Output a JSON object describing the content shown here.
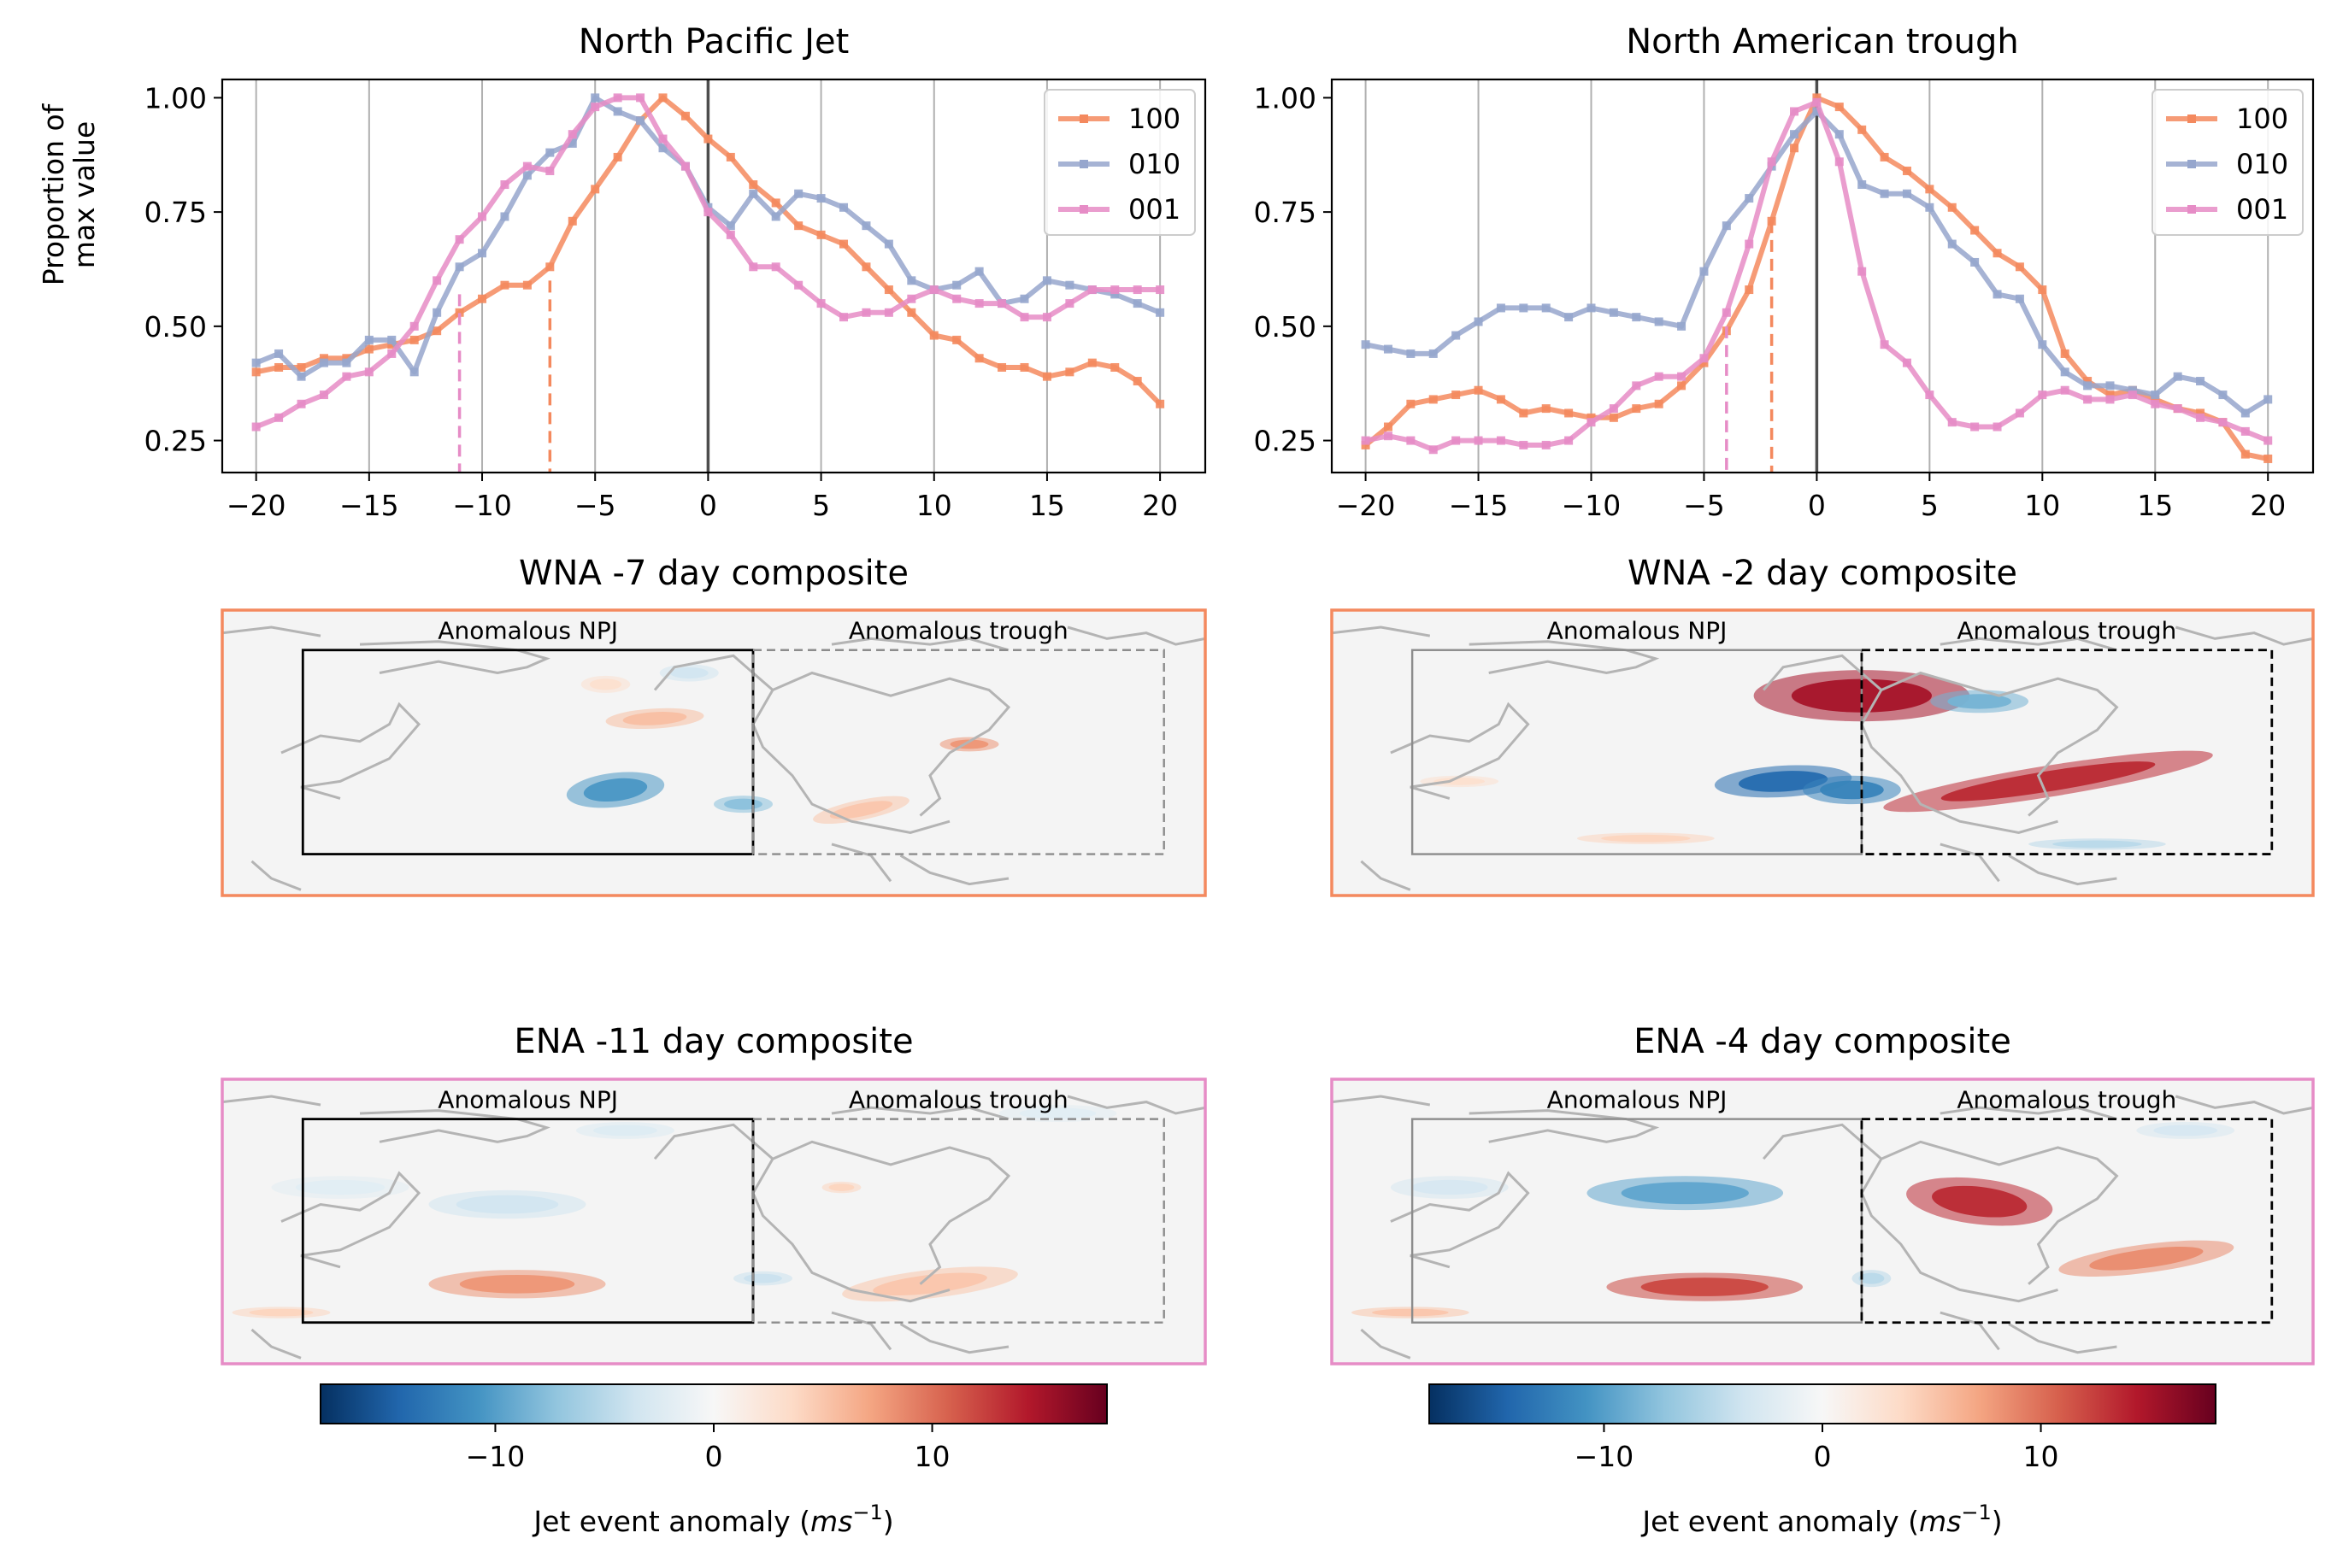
{
  "colors": {
    "c100": "#f4895e",
    "c010": "#96a6cd",
    "c001": "#e68cc6",
    "grid": "#b0b0b0",
    "zero_line": "#4d4d4d",
    "map_bg": "#f4f4f4",
    "coast": "#b4b4b4",
    "box_active": "#000000",
    "box_inactive": "#8c8c8c",
    "colormap": [
      "#053061",
      "#2166ac",
      "#4393c3",
      "#92c5de",
      "#d1e5f0",
      "#f7f7f7",
      "#fddbc7",
      "#f4a582",
      "#d6604d",
      "#b2182b",
      "#67001f"
    ]
  },
  "chart_data": [
    {
      "type": "line",
      "title": "North Pacific Jet",
      "ylabel": "Proportion of\nmax value",
      "xlabel": "",
      "xlim": [
        -21.5,
        22
      ],
      "ylim": [
        0.18,
        1.04
      ],
      "x": [
        -20,
        -19,
        -18,
        -17,
        -16,
        -15,
        -14,
        -13,
        -12,
        -11,
        -10,
        -9,
        -8,
        -7,
        -6,
        -5,
        -4,
        -3,
        -2,
        -1,
        0,
        1,
        2,
        3,
        4,
        5,
        6,
        7,
        8,
        9,
        10,
        11,
        12,
        13,
        14,
        15,
        16,
        17,
        18,
        19,
        20
      ],
      "x_ticks": [
        -20,
        -15,
        -10,
        -5,
        0,
        5,
        10,
        15,
        20
      ],
      "x_tick_labels": [
        "−20",
        "−15",
        "−10",
        "−5",
        "0",
        "5",
        "10",
        "15",
        "20"
      ],
      "y_ticks": [
        0.25,
        0.5,
        0.75,
        1.0
      ],
      "y_tick_labels": [
        "0.25",
        "0.50",
        "0.75",
        "1.00"
      ],
      "grid_x": true,
      "zero_line": true,
      "legend": "top-right",
      "series": [
        {
          "name": "100",
          "color_key": "c100",
          "values": [
            0.4,
            0.41,
            0.41,
            0.43,
            0.43,
            0.45,
            0.46,
            0.47,
            0.49,
            0.53,
            0.56,
            0.59,
            0.59,
            0.63,
            0.73,
            0.8,
            0.87,
            0.95,
            1.0,
            0.96,
            0.91,
            0.87,
            0.81,
            0.77,
            0.72,
            0.7,
            0.68,
            0.63,
            0.58,
            0.53,
            0.48,
            0.47,
            0.43,
            0.41,
            0.41,
            0.39,
            0.4,
            0.42,
            0.41,
            0.38,
            0.33
          ]
        },
        {
          "name": "010",
          "color_key": "c010",
          "values": [
            0.42,
            0.44,
            0.39,
            0.42,
            0.42,
            0.47,
            0.47,
            0.4,
            0.53,
            0.63,
            0.66,
            0.74,
            0.83,
            0.88,
            0.9,
            1.0,
            0.97,
            0.95,
            0.89,
            0.85,
            0.76,
            0.72,
            0.79,
            0.74,
            0.79,
            0.78,
            0.76,
            0.72,
            0.68,
            0.6,
            0.58,
            0.59,
            0.62,
            0.55,
            0.56,
            0.6,
            0.59,
            0.58,
            0.57,
            0.55,
            0.53
          ]
        },
        {
          "name": "001",
          "color_key": "c001",
          "values": [
            0.28,
            0.3,
            0.33,
            0.35,
            0.39,
            0.4,
            0.44,
            0.5,
            0.6,
            0.69,
            0.74,
            0.81,
            0.85,
            0.84,
            0.92,
            0.98,
            1.0,
            1.0,
            0.91,
            0.85,
            0.75,
            0.7,
            0.63,
            0.63,
            0.59,
            0.55,
            0.52,
            0.53,
            0.53,
            0.56,
            0.58,
            0.56,
            0.55,
            0.55,
            0.52,
            0.52,
            0.55,
            0.58,
            0.58,
            0.58,
            0.58
          ]
        }
      ],
      "event_lines": [
        {
          "x": -11,
          "y": 0.57,
          "color_key": "c001"
        },
        {
          "x": -7,
          "y": 0.6,
          "color_key": "c100"
        }
      ]
    },
    {
      "type": "line",
      "title": "North American trough",
      "ylabel": "",
      "xlabel": "",
      "xlim": [
        -21.5,
        22
      ],
      "ylim": [
        0.18,
        1.04
      ],
      "x": [
        -20,
        -19,
        -18,
        -17,
        -16,
        -15,
        -14,
        -13,
        -12,
        -11,
        -10,
        -9,
        -8,
        -7,
        -6,
        -5,
        -4,
        -3,
        -2,
        -1,
        0,
        1,
        2,
        3,
        4,
        5,
        6,
        7,
        8,
        9,
        10,
        11,
        12,
        13,
        14,
        15,
        16,
        17,
        18,
        19,
        20
      ],
      "x_ticks": [
        -20,
        -15,
        -10,
        -5,
        0,
        5,
        10,
        15,
        20
      ],
      "x_tick_labels": [
        "−20",
        "−15",
        "−10",
        "−5",
        "0",
        "5",
        "10",
        "15",
        "20"
      ],
      "y_ticks": [
        0.25,
        0.5,
        0.75,
        1.0
      ],
      "y_tick_labels": [
        "0.25",
        "0.50",
        "0.75",
        "1.00"
      ],
      "grid_x": true,
      "zero_line": true,
      "legend": "top-right",
      "series": [
        {
          "name": "100",
          "color_key": "c100",
          "values": [
            0.24,
            0.28,
            0.33,
            0.34,
            0.35,
            0.36,
            0.34,
            0.31,
            0.32,
            0.31,
            0.3,
            0.3,
            0.32,
            0.33,
            0.37,
            0.42,
            0.49,
            0.58,
            0.73,
            0.89,
            1.0,
            0.98,
            0.93,
            0.87,
            0.84,
            0.8,
            0.76,
            0.71,
            0.66,
            0.63,
            0.58,
            0.44,
            0.38,
            0.35,
            0.36,
            0.34,
            0.32,
            0.31,
            0.29,
            0.22,
            0.21
          ]
        },
        {
          "name": "010",
          "color_key": "c010",
          "values": [
            0.46,
            0.45,
            0.44,
            0.44,
            0.48,
            0.51,
            0.54,
            0.54,
            0.54,
            0.52,
            0.54,
            0.53,
            0.52,
            0.51,
            0.5,
            0.62,
            0.72,
            0.78,
            0.85,
            0.92,
            0.97,
            0.92,
            0.81,
            0.79,
            0.79,
            0.76,
            0.68,
            0.64,
            0.57,
            0.56,
            0.46,
            0.4,
            0.37,
            0.37,
            0.36,
            0.35,
            0.39,
            0.38,
            0.35,
            0.31,
            0.34
          ]
        },
        {
          "name": "001",
          "color_key": "c001",
          "values": [
            0.25,
            0.26,
            0.25,
            0.23,
            0.25,
            0.25,
            0.25,
            0.24,
            0.24,
            0.25,
            0.29,
            0.32,
            0.37,
            0.39,
            0.39,
            0.43,
            0.53,
            0.68,
            0.86,
            0.97,
            0.99,
            0.86,
            0.62,
            0.46,
            0.42,
            0.35,
            0.29,
            0.28,
            0.28,
            0.31,
            0.35,
            0.36,
            0.34,
            0.34,
            0.35,
            0.33,
            0.32,
            0.3,
            0.29,
            0.27,
            0.25
          ]
        }
      ],
      "event_lines": [
        {
          "x": -4,
          "y": 0.5,
          "color_key": "c001"
        },
        {
          "x": -2,
          "y": 0.73,
          "color_key": "c100"
        }
      ]
    }
  ],
  "map_panels": [
    {
      "title": "WNA -7 day composite",
      "border_key": "c100",
      "npj_label": "Anomalous NPJ",
      "trough_label": "Anomalous trough",
      "active": "npj",
      "blobs": [
        [
          0.44,
          0.38,
          0.05,
          0.035,
          5.5,
          -0.2
        ],
        [
          0.4,
          0.63,
          0.05,
          0.06,
          -10.5,
          -0.4
        ],
        [
          0.53,
          0.68,
          0.03,
          0.03,
          -7.5,
          0
        ],
        [
          0.39,
          0.26,
          0.025,
          0.03,
          3.0,
          0
        ],
        [
          0.475,
          0.22,
          0.03,
          0.03,
          -3.5,
          0
        ],
        [
          0.76,
          0.47,
          0.03,
          0.025,
          8.0,
          0
        ],
        [
          0.65,
          0.7,
          0.05,
          0.035,
          5.0,
          -0.7
        ]
      ]
    },
    {
      "title": "WNA -2 day composite",
      "border_key": "c100",
      "npj_label": "Anomalous NPJ",
      "trough_label": "Anomalous trough",
      "active": "trough",
      "blobs": [
        [
          0.54,
          0.3,
          0.11,
          0.09,
          15.0,
          0
        ],
        [
          0.46,
          0.6,
          0.07,
          0.055,
          -14.0,
          -0.2
        ],
        [
          0.53,
          0.63,
          0.05,
          0.05,
          -12.0,
          0
        ],
        [
          0.66,
          0.32,
          0.05,
          0.04,
          -8.5,
          0
        ],
        [
          0.73,
          0.6,
          0.17,
          0.055,
          13.5,
          -0.55
        ],
        [
          0.32,
          0.8,
          0.07,
          0.02,
          4.0,
          0
        ],
        [
          0.78,
          0.82,
          0.07,
          0.02,
          -5.0,
          0
        ],
        [
          0.13,
          0.6,
          0.04,
          0.02,
          3.0,
          0
        ]
      ]
    },
    {
      "title": "ENA -11 day composite",
      "border_key": "c001",
      "npj_label": "Anomalous NPJ",
      "trough_label": "Anomalous trough",
      "active": "npj",
      "blobs": [
        [
          0.29,
          0.44,
          0.08,
          0.05,
          -3.5,
          0
        ],
        [
          0.12,
          0.38,
          0.07,
          0.04,
          -2.0,
          0
        ],
        [
          0.41,
          0.18,
          0.05,
          0.03,
          -2.5,
          0
        ],
        [
          0.3,
          0.72,
          0.09,
          0.05,
          8.0,
          0
        ],
        [
          0.55,
          0.7,
          0.03,
          0.025,
          -4.0,
          0
        ],
        [
          0.72,
          0.72,
          0.09,
          0.05,
          5.0,
          -0.4
        ],
        [
          0.63,
          0.38,
          0.02,
          0.02,
          4.0,
          0
        ],
        [
          0.85,
          0.12,
          0.06,
          0.03,
          -2.0,
          0
        ],
        [
          0.06,
          0.82,
          0.05,
          0.02,
          4.0,
          0
        ]
      ]
    },
    {
      "title": "ENA -4 day composite",
      "border_key": "c001",
      "npj_label": "Anomalous NPJ",
      "trough_label": "Anomalous trough",
      "active": "trough",
      "blobs": [
        [
          0.36,
          0.4,
          0.1,
          0.06,
          -9.5,
          0
        ],
        [
          0.12,
          0.38,
          0.06,
          0.04,
          -3.0,
          0
        ],
        [
          0.38,
          0.73,
          0.1,
          0.05,
          12.0,
          0
        ],
        [
          0.66,
          0.43,
          0.075,
          0.08,
          13.5,
          0.4
        ],
        [
          0.83,
          0.63,
          0.09,
          0.05,
          8.5,
          -0.45
        ],
        [
          0.55,
          0.7,
          0.02,
          0.03,
          -5.0,
          0
        ],
        [
          0.87,
          0.18,
          0.05,
          0.03,
          -3.0,
          0
        ],
        [
          0.08,
          0.82,
          0.06,
          0.02,
          5.0,
          0
        ]
      ]
    }
  ],
  "colorbars": [
    {
      "label": "Jet event anomaly (",
      "label_math": "ms",
      "label_sup": "−1",
      "label_end": ")",
      "vmin": -18,
      "vmax": 18,
      "ticks": [
        -10,
        0,
        10
      ],
      "tick_labels": [
        "−10",
        "0",
        "10"
      ]
    },
    {
      "label": "Jet event anomaly (",
      "label_math": "ms",
      "label_sup": "−1",
      "label_end": ")",
      "vmin": -18,
      "vmax": 18,
      "ticks": [
        -10,
        0,
        10
      ],
      "tick_labels": [
        "−10",
        "0",
        "10"
      ]
    }
  ]
}
